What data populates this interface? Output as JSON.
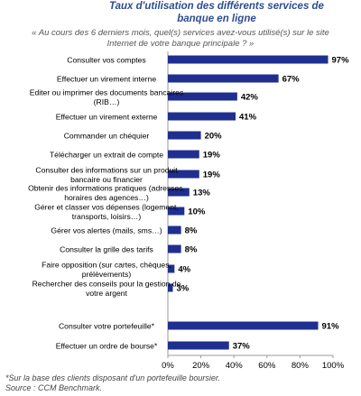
{
  "header": {
    "title": "Taux d'utilisation des différents services de banque en ligne",
    "subtitle": "« Au cours des 6 derniers mois, quel(s) services avez-vous utilisé(s) sur le site Internet de votre banque principale ? »"
  },
  "footer": {
    "note": "*Sur la base des clients disposant d'un portefeuille boursier.",
    "source": "Source : CCM Benchmark."
  },
  "colors": {
    "bar": "#1f2f8f",
    "axis": "#999999",
    "text": "#000000"
  },
  "chart_data": {
    "type": "bar",
    "orientation": "horizontal",
    "categories": [
      "Consulter vos comptes",
      "Effectuer un virement interne",
      "Editer ou imprimer des documents bancaires (RIB…)",
      "Effectuer un virement externe",
      "Commander un chéquier",
      "Télécharger un extrait de compte",
      "Consulter des informations sur un produit bancaire ou financier",
      "Obtenir des informations pratiques (adresses, horaires des agences…)",
      "Gérer et classer vos dépenses (logement, transports, loisirs…)",
      "Gérer vos alertes (mails, sms…)",
      "Consulter la grille des tarifs",
      "Faire opposition (sur cartes, chèques, prélèvements)",
      "Rechercher des conseils pour la gestion de votre argent",
      "Consulter votre portefeuille*",
      "Effectuer un ordre de bourse*"
    ],
    "category_lines": [
      [
        "Consulter vos comptes"
      ],
      [
        "Effectuer un virement interne"
      ],
      [
        "Editer ou imprimer des documents bancaires",
        "(RIB…)"
      ],
      [
        "Effectuer un virement externe"
      ],
      [
        "Commander un chéquier"
      ],
      [
        "Télécharger un extrait de compte"
      ],
      [
        "Consulter des informations sur un produit",
        "bancaire ou financier"
      ],
      [
        "Obtenir des informations pratiques (adresses,",
        "horaires des agences…)"
      ],
      [
        "Gérer et classer vos dépenses (logement,",
        "transports, loisirs…)"
      ],
      [
        "Gérer vos alertes (mails, sms…)"
      ],
      [
        "Consulter la grille des tarifs"
      ],
      [
        "Faire opposition (sur cartes, chèques,",
        "prélèvements)"
      ],
      [
        "Rechercher des conseils pour la gestion de",
        "votre argent"
      ],
      [
        "Consulter votre portefeuille*"
      ],
      [
        "Effectuer un ordre de bourse*"
      ]
    ],
    "values": [
      97,
      67,
      42,
      41,
      20,
      19,
      19,
      13,
      10,
      8,
      8,
      4,
      3,
      91,
      37
    ],
    "value_labels": [
      "97%",
      "67%",
      "42%",
      "41%",
      "20%",
      "19%",
      "19%",
      "13%",
      "10%",
      "8%",
      "8%",
      "4%",
      "3%",
      "91%",
      "37%"
    ],
    "xlim": [
      0,
      100
    ],
    "x_ticks": [
      "0%",
      "20%",
      "40%",
      "60%",
      "80%",
      "100%"
    ],
    "x_tick_values": [
      0,
      20,
      40,
      60,
      80,
      100
    ],
    "grid": false,
    "legend": "none"
  }
}
